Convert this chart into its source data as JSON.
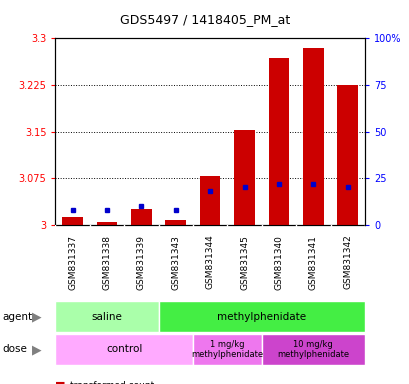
{
  "title": "GDS5497 / 1418405_PM_at",
  "samples": [
    "GSM831337",
    "GSM831338",
    "GSM831339",
    "GSM831343",
    "GSM831344",
    "GSM831345",
    "GSM831340",
    "GSM831341",
    "GSM831342"
  ],
  "red_values": [
    3.012,
    3.005,
    3.025,
    3.008,
    3.078,
    3.152,
    3.268,
    3.285,
    3.225
  ],
  "blue_percentiles": [
    8,
    8,
    10,
    8,
    18,
    20,
    22,
    22,
    20
  ],
  "ylim_left": [
    3.0,
    3.3
  ],
  "ylim_right": [
    0,
    100
  ],
  "yticks_left": [
    3.0,
    3.075,
    3.15,
    3.225,
    3.3
  ],
  "ytick_labels_left": [
    "3",
    "3.075",
    "3.15",
    "3.225",
    "3.3"
  ],
  "yticks_right": [
    0,
    25,
    50,
    75,
    100
  ],
  "ytick_labels_right": [
    "0",
    "25",
    "50",
    "75",
    "100%"
  ],
  "bar_color": "#CC0000",
  "blue_color": "#0000CC",
  "bar_width": 0.6,
  "base_value": 3.0,
  "bg_color": "#FFFFFF",
  "saline_color": "#AAFFAA",
  "methyl_color": "#44EE44",
  "control_color": "#FFAAFF",
  "dose1_color": "#EE77EE",
  "dose2_color": "#CC44CC",
  "label_bg": "#CCCCCC"
}
